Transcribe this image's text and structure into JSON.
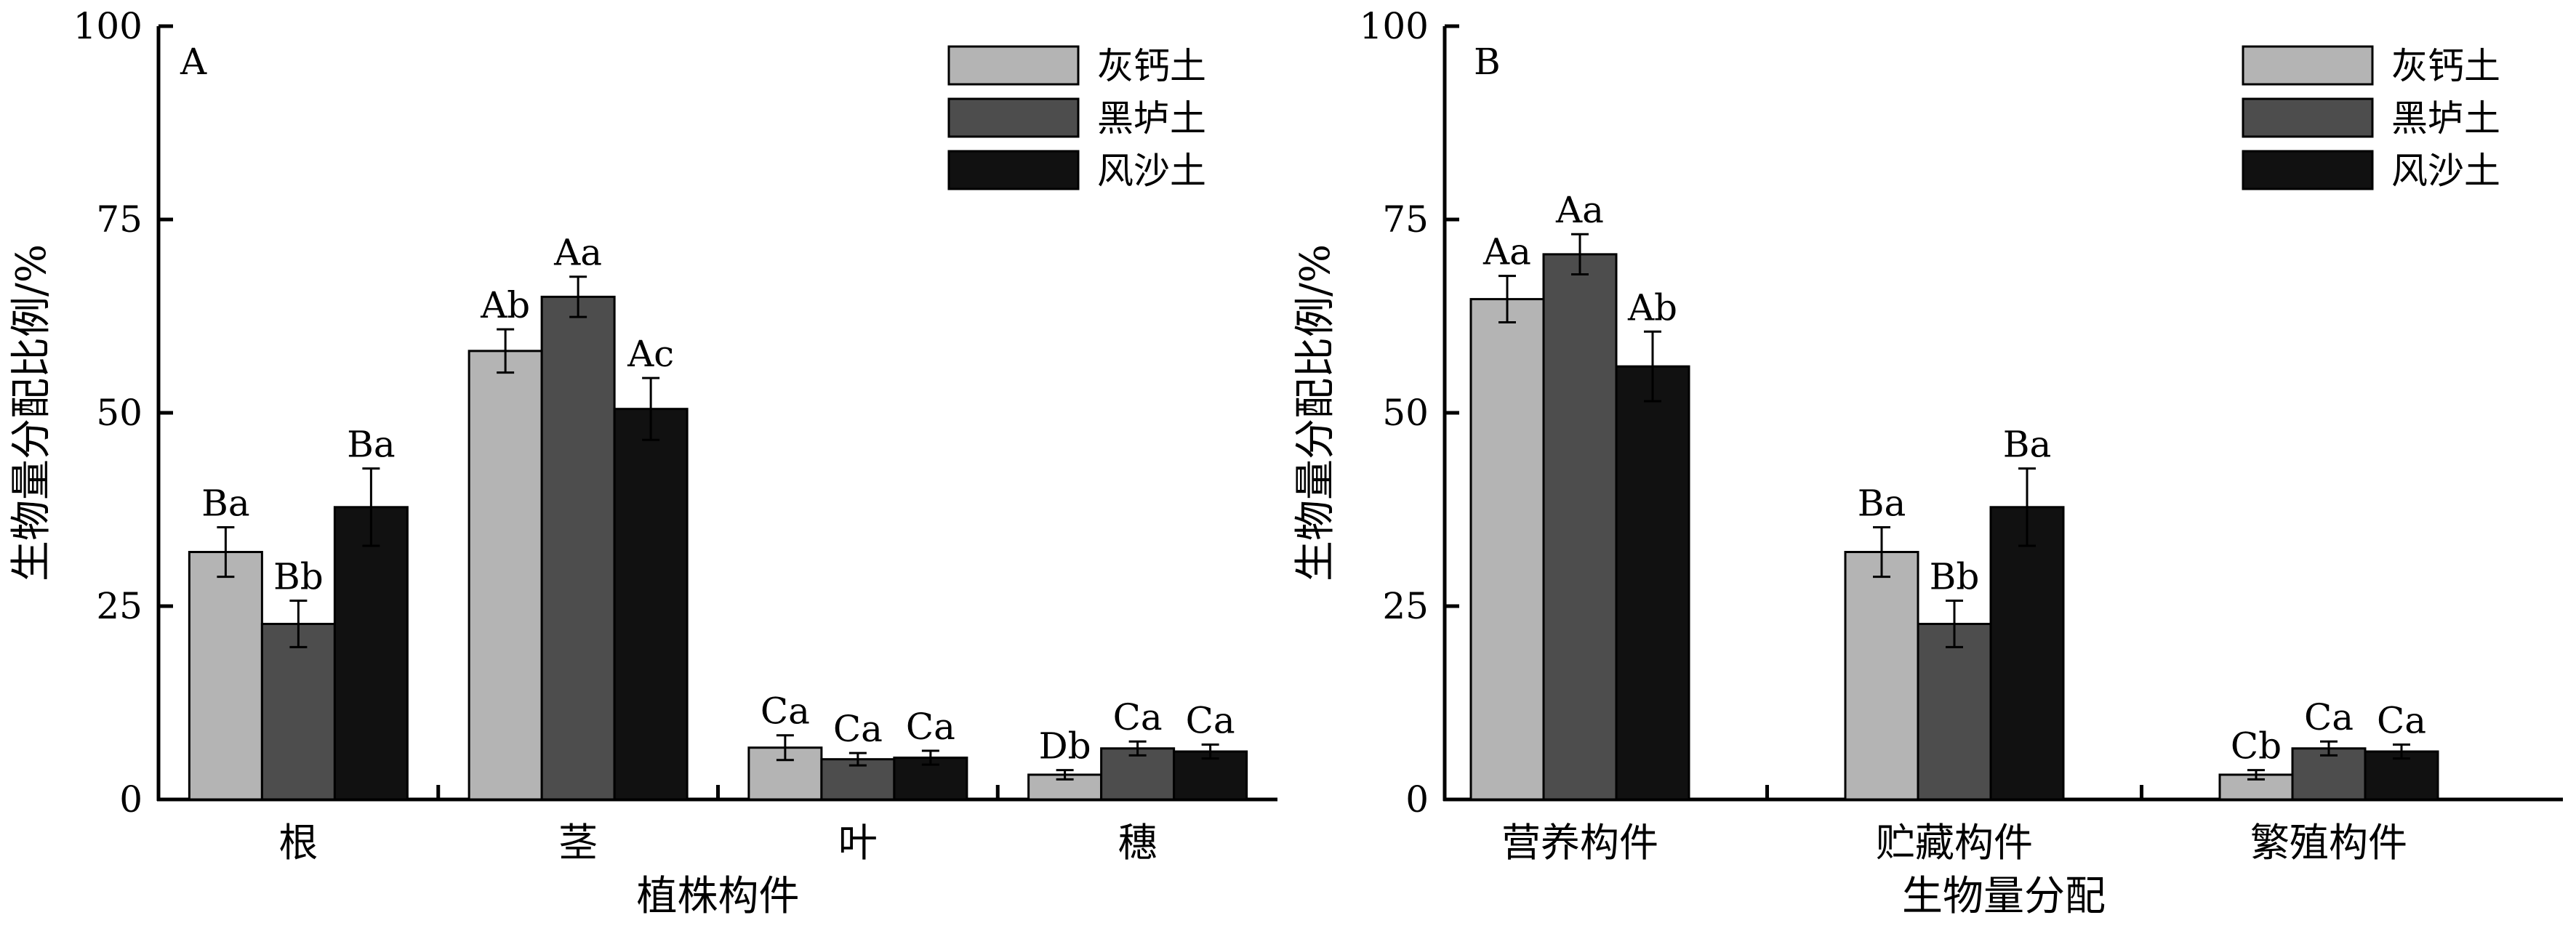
{
  "chart_data": [
    {
      "type": "bar",
      "panel_label": "A",
      "title": "",
      "xlabel": "植株构件",
      "ylabel": "生物量分配比例/%",
      "ylim": [
        0,
        100
      ],
      "yticks": [
        0,
        25,
        50,
        75,
        100
      ],
      "categories": [
        "根",
        "茎",
        "叶",
        "穗"
      ],
      "legend_position": "top-right",
      "series": [
        {
          "name": "灰钙土",
          "color": "#b4b4b4",
          "values": [
            32.0,
            58.0,
            6.7,
            3.2
          ],
          "errors": [
            3.2,
            2.8,
            1.6,
            0.6
          ],
          "labels": [
            "Ba",
            "Ab",
            "Ca",
            "Db"
          ]
        },
        {
          "name": "黑垆土",
          "color": "#4d4d4d",
          "values": [
            22.7,
            65.0,
            5.2,
            6.6
          ],
          "errors": [
            3.0,
            2.6,
            0.8,
            0.9
          ],
          "labels": [
            "Bb",
            "Aa",
            "Ca",
            "Ca"
          ]
        },
        {
          "name": "风沙土",
          "color": "#111111",
          "values": [
            37.8,
            50.5,
            5.4,
            6.2
          ],
          "errors": [
            5.0,
            4.0,
            0.9,
            0.9
          ],
          "labels": [
            "Ba",
            "Ac",
            "Ca",
            "Ca"
          ]
        }
      ]
    },
    {
      "type": "bar",
      "panel_label": "B",
      "title": "",
      "xlabel": "生物量分配",
      "ylabel": "生物量分配比例/%",
      "ylim": [
        0,
        100
      ],
      "yticks": [
        0,
        25,
        50,
        75,
        100
      ],
      "categories": [
        "营养构件",
        "贮藏构件",
        "繁殖构件"
      ],
      "legend_position": "top-right",
      "series": [
        {
          "name": "灰钙土",
          "color": "#b4b4b4",
          "values": [
            64.7,
            32.0,
            3.2
          ],
          "errors": [
            3.0,
            3.2,
            0.6
          ],
          "labels": [
            "Aa",
            "Ba",
            "Cb"
          ]
        },
        {
          "name": "黑垆土",
          "color": "#4d4d4d",
          "values": [
            70.5,
            22.7,
            6.6
          ],
          "errors": [
            2.6,
            3.0,
            0.9
          ],
          "labels": [
            "Aa",
            "Bb",
            "Ca"
          ]
        },
        {
          "name": "风沙土",
          "color": "#111111",
          "values": [
            56.0,
            37.8,
            6.2
          ],
          "errors": [
            4.5,
            5.0,
            0.9
          ],
          "labels": [
            "Ab",
            "Ba",
            "Ca"
          ]
        }
      ]
    }
  ]
}
